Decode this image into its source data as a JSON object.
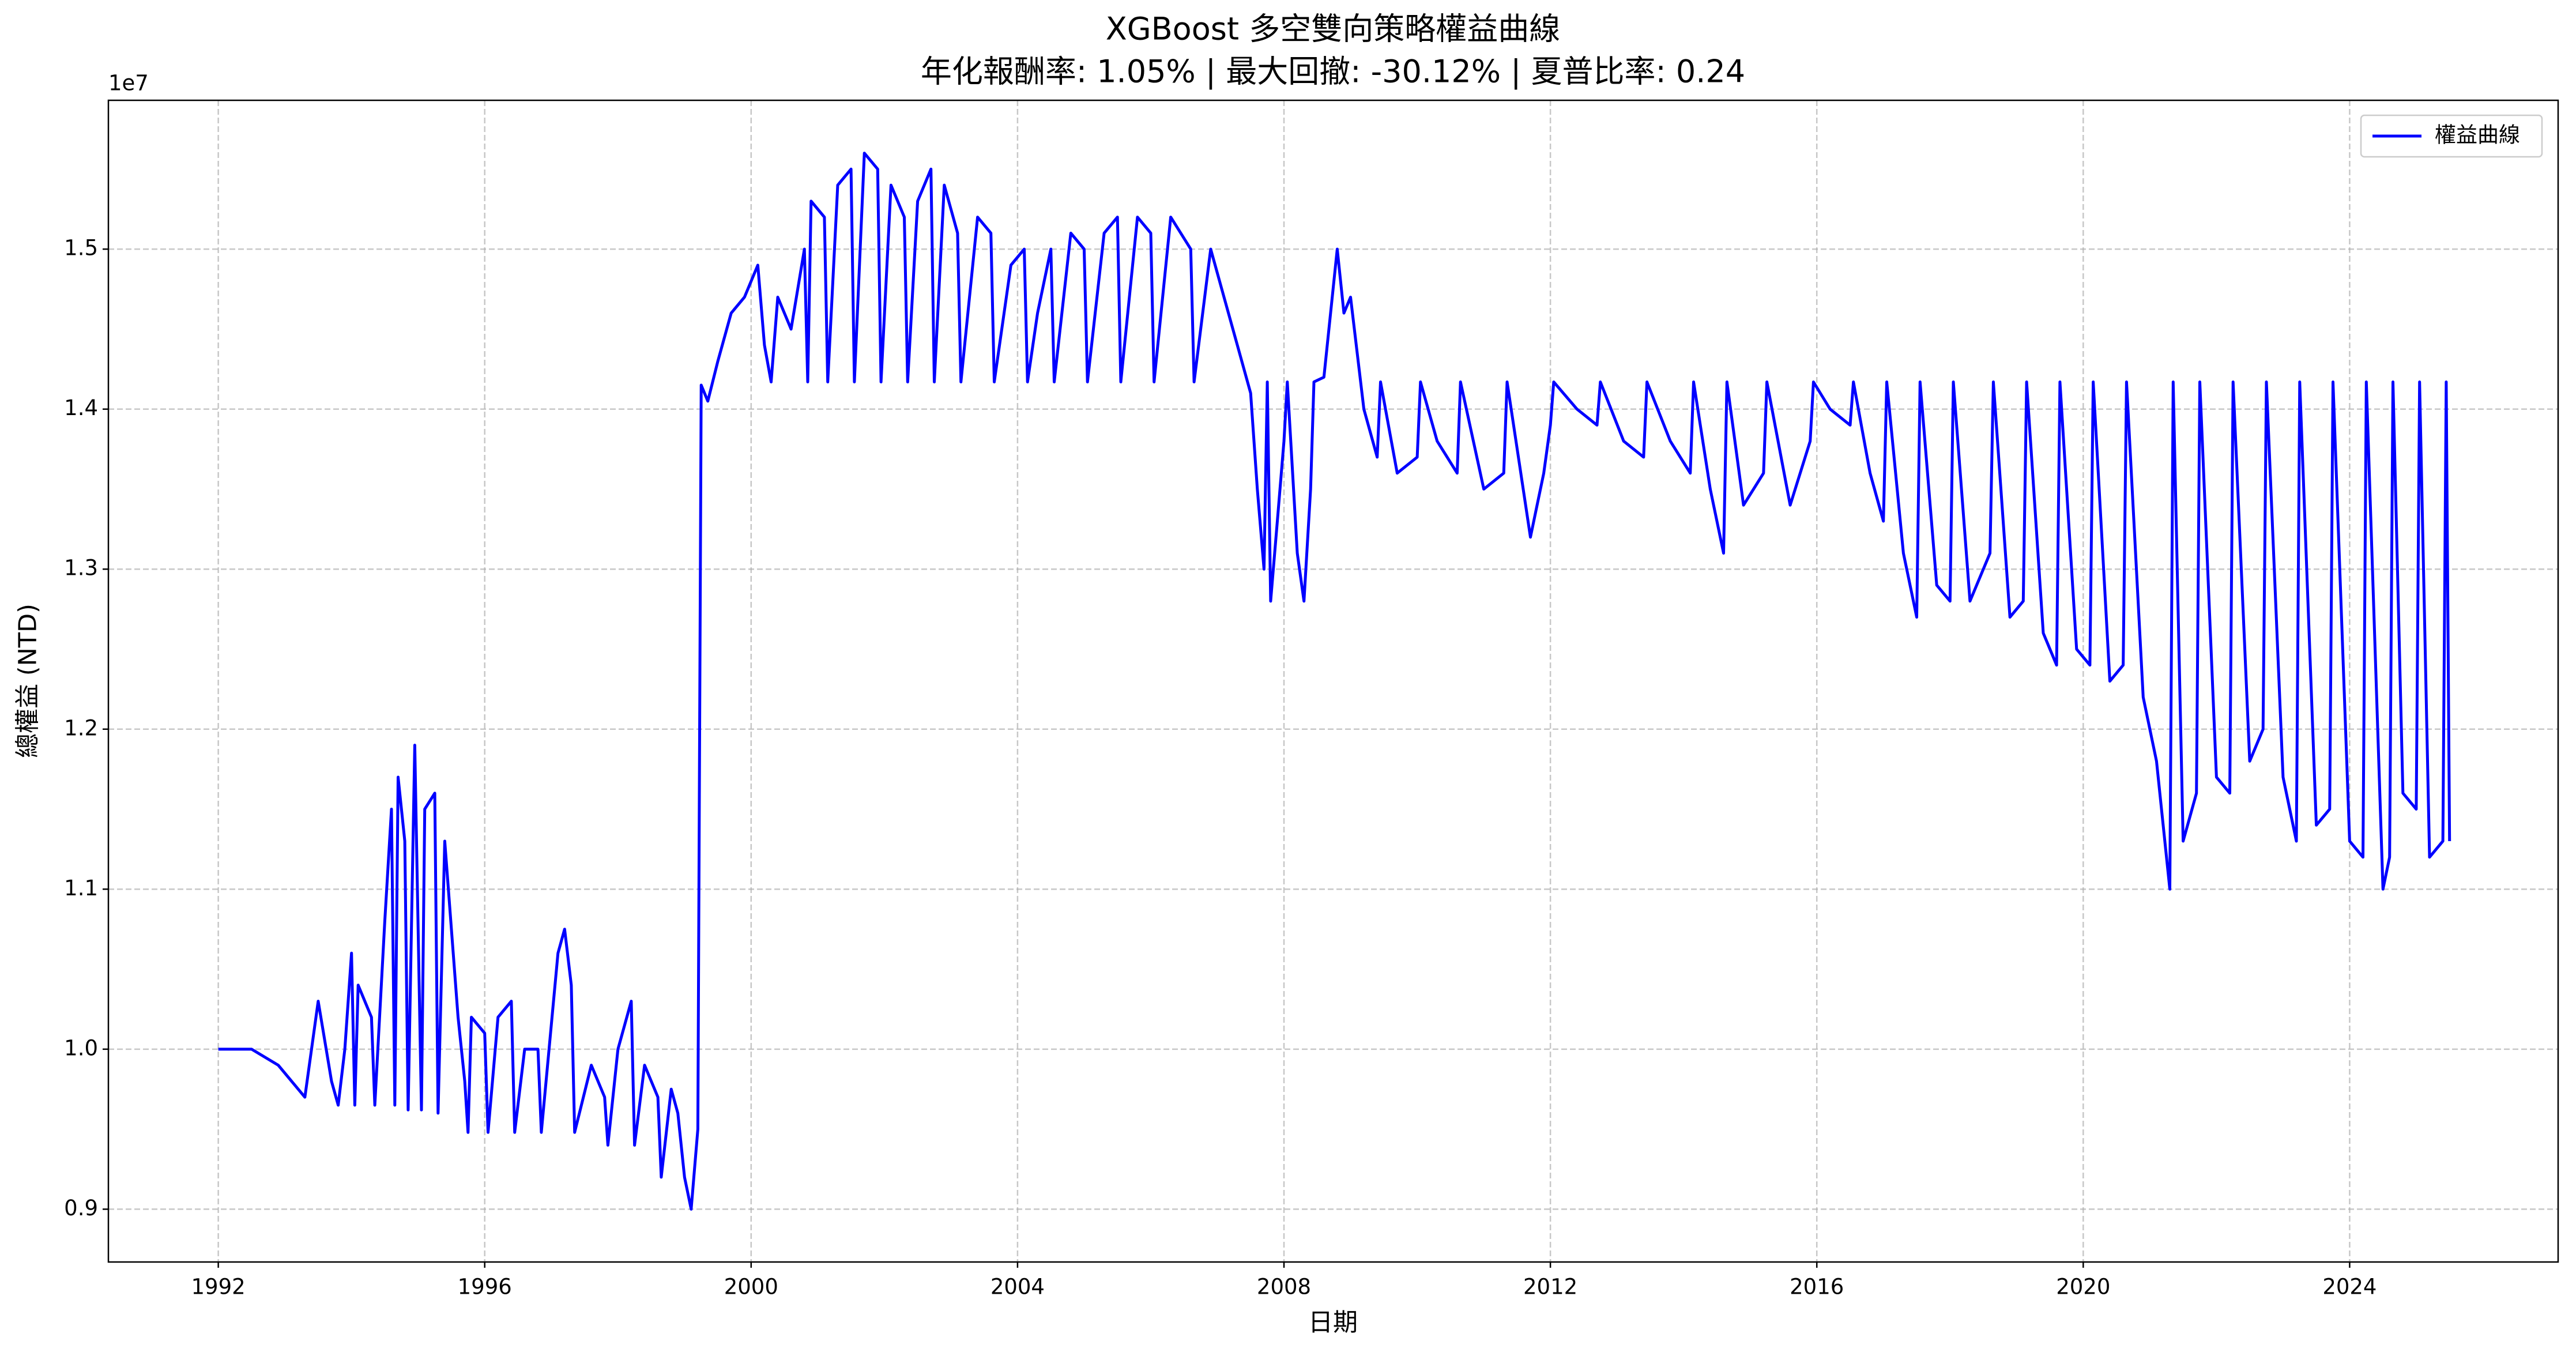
{
  "chart_data": {
    "type": "line",
    "title": "XGBoost 多空雙向策略權益曲線",
    "subtitle": "年化報酬率: 1.05% | 最大回撤: -30.12% | 夏普比率: 0.24",
    "x_label": "日期",
    "y_label": "總權益 (NTD)",
    "y_offset_label": "1e7",
    "xlim": [
      1990.35,
      2027.13
    ],
    "ylim": [
      0.867,
      1.593
    ],
    "xticks": [
      1992,
      1996,
      2000,
      2004,
      2008,
      2012,
      2016,
      2020,
      2024
    ],
    "yticks": [
      0.9,
      {
        "value": 1,
        "label": "1.0"
      },
      1.1,
      1.2,
      1.3,
      1.4,
      1.5
    ],
    "grid": true,
    "legend": "upper right",
    "x": [
      1992.0,
      1992.5,
      1992.9,
      1993.1,
      1993.3,
      1993.5,
      1993.7,
      1993.8,
      1993.9,
      1994.0,
      1994.05,
      1994.1,
      1994.3,
      1994.35,
      1994.5,
      1994.6,
      1994.65,
      1994.7,
      1994.8,
      1994.85,
      1994.95,
      1995.05,
      1995.1,
      1995.25,
      1995.3,
      1995.4,
      1995.6,
      1995.7,
      1995.75,
      1995.8,
      1996.0,
      1996.05,
      1996.2,
      1996.4,
      1996.45,
      1996.6,
      1996.8,
      1996.85,
      1997.1,
      1997.2,
      1997.3,
      1997.35,
      1997.6,
      1997.8,
      1997.85,
      1998.0,
      1998.2,
      1998.25,
      1998.4,
      1998.6,
      1998.65,
      1998.8,
      1998.9,
      1999.0,
      1999.1,
      1999.2,
      1999.25,
      1999.35,
      1999.5,
      1999.7,
      1999.9,
      2000.1,
      2000.2,
      2000.3,
      2000.4,
      2000.6,
      2000.8,
      2000.85,
      2000.9,
      2001.1,
      2001.15,
      2001.3,
      2001.5,
      2001.55,
      2001.7,
      2001.9,
      2001.95,
      2002.1,
      2002.3,
      2002.35,
      2002.5,
      2002.7,
      2002.75,
      2002.9,
      2003.1,
      2003.15,
      2003.4,
      2003.6,
      2003.65,
      2003.9,
      2004.1,
      2004.15,
      2004.3,
      2004.5,
      2004.55,
      2004.8,
      2005.0,
      2005.05,
      2005.3,
      2005.5,
      2005.55,
      2005.8,
      2006.0,
      2006.05,
      2006.3,
      2006.6,
      2006.65,
      2006.9,
      2007.1,
      2007.3,
      2007.5,
      2007.6,
      2007.7,
      2007.75,
      2007.8,
      2007.9,
      2008.0,
      2008.05,
      2008.2,
      2008.3,
      2008.4,
      2008.45,
      2008.6,
      2008.8,
      2008.9,
      2009.0,
      2009.2,
      2009.4,
      2009.45,
      2009.7,
      2010.0,
      2010.05,
      2010.3,
      2010.6,
      2010.65,
      2011.0,
      2011.3,
      2011.35,
      2011.7,
      2011.9,
      2012.0,
      2012.05,
      2012.4,
      2012.7,
      2012.75,
      2013.1,
      2013.4,
      2013.45,
      2013.8,
      2014.1,
      2014.15,
      2014.4,
      2014.6,
      2014.65,
      2014.9,
      2015.2,
      2015.25,
      2015.6,
      2015.9,
      2015.95,
      2016.2,
      2016.5,
      2016.55,
      2016.8,
      2017.0,
      2017.05,
      2017.3,
      2017.5,
      2017.55,
      2017.8,
      2018.0,
      2018.05,
      2018.3,
      2018.6,
      2018.65,
      2018.9,
      2019.1,
      2019.15,
      2019.4,
      2019.6,
      2019.65,
      2019.9,
      2020.1,
      2020.15,
      2020.4,
      2020.6,
      2020.65,
      2020.9,
      2021.1,
      2021.3,
      2021.35,
      2021.5,
      2021.7,
      2021.75,
      2022.0,
      2022.2,
      2022.25,
      2022.5,
      2022.7,
      2022.75,
      2023.0,
      2023.2,
      2023.25,
      2023.5,
      2023.7,
      2023.75,
      2024.0,
      2024.2,
      2024.25,
      2024.5,
      2024.6,
      2024.65,
      2024.8,
      2025.0,
      2025.05,
      2025.2,
      2025.4,
      2025.45,
      2025.5
    ],
    "series": [
      {
        "name": "權益曲線",
        "color": "#0000ff",
        "values": [
          1.0,
          1.0,
          0.99,
          0.98,
          0.97,
          1.03,
          0.98,
          0.965,
          1.0,
          1.06,
          0.965,
          1.04,
          1.02,
          0.965,
          1.08,
          1.15,
          0.965,
          1.17,
          1.13,
          0.962,
          1.19,
          0.962,
          1.15,
          1.16,
          0.96,
          1.13,
          1.02,
          0.98,
          0.948,
          1.02,
          1.01,
          0.948,
          1.02,
          1.03,
          0.948,
          1.0,
          1.0,
          0.948,
          1.06,
          1.075,
          1.04,
          0.948,
          0.99,
          0.97,
          0.94,
          1.0,
          1.03,
          0.94,
          0.99,
          0.97,
          0.92,
          0.975,
          0.96,
          0.92,
          0.9,
          0.95,
          1.415,
          1.405,
          1.43,
          1.46,
          1.47,
          1.49,
          1.44,
          1.417,
          1.47,
          1.45,
          1.5,
          1.417,
          1.53,
          1.52,
          1.417,
          1.54,
          1.55,
          1.417,
          1.56,
          1.55,
          1.417,
          1.54,
          1.52,
          1.417,
          1.53,
          1.55,
          1.417,
          1.54,
          1.51,
          1.417,
          1.52,
          1.51,
          1.417,
          1.49,
          1.5,
          1.417,
          1.46,
          1.5,
          1.417,
          1.51,
          1.5,
          1.417,
          1.51,
          1.52,
          1.417,
          1.52,
          1.51,
          1.417,
          1.52,
          1.5,
          1.417,
          1.5,
          1.47,
          1.44,
          1.41,
          1.35,
          1.3,
          1.417,
          1.28,
          1.33,
          1.38,
          1.417,
          1.31,
          1.28,
          1.35,
          1.417,
          1.42,
          1.5,
          1.46,
          1.47,
          1.4,
          1.37,
          1.417,
          1.36,
          1.37,
          1.417,
          1.38,
          1.36,
          1.417,
          1.35,
          1.36,
          1.417,
          1.32,
          1.36,
          1.39,
          1.417,
          1.4,
          1.39,
          1.417,
          1.38,
          1.37,
          1.417,
          1.38,
          1.36,
          1.417,
          1.35,
          1.31,
          1.417,
          1.34,
          1.36,
          1.417,
          1.34,
          1.38,
          1.417,
          1.4,
          1.39,
          1.417,
          1.36,
          1.33,
          1.417,
          1.31,
          1.27,
          1.417,
          1.29,
          1.28,
          1.417,
          1.28,
          1.31,
          1.417,
          1.27,
          1.28,
          1.417,
          1.26,
          1.24,
          1.417,
          1.25,
          1.24,
          1.417,
          1.23,
          1.24,
          1.417,
          1.22,
          1.18,
          1.1,
          1.417,
          1.13,
          1.16,
          1.417,
          1.17,
          1.16,
          1.417,
          1.18,
          1.2,
          1.417,
          1.17,
          1.13,
          1.417,
          1.14,
          1.15,
          1.417,
          1.13,
          1.12,
          1.417,
          1.1,
          1.12,
          1.417,
          1.16,
          1.15,
          1.417,
          1.12,
          1.13,
          1.417,
          1.13
        ]
      }
    ]
  }
}
